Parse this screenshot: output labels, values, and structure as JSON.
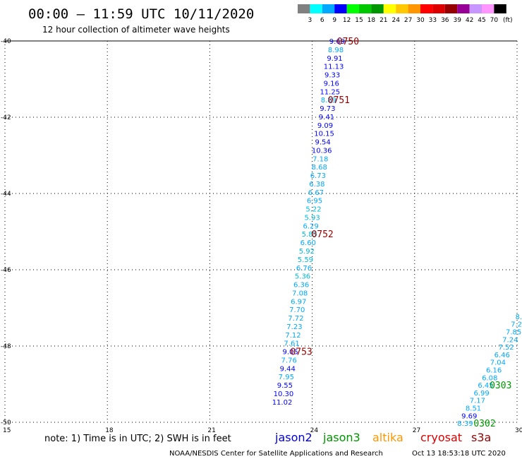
{
  "header": {
    "title": "00:00 – 11:59 UTC 10/11/2020",
    "subtitle": "12 hour collection of altimeter wave heights"
  },
  "legend": {
    "unit": "(ft)",
    "bins": [
      {
        "label": "3",
        "color": "#808080"
      },
      {
        "label": "6",
        "color": "#00ffff"
      },
      {
        "label": "9",
        "color": "#00a8ff"
      },
      {
        "label": "12",
        "color": "#0000ff"
      },
      {
        "label": "15",
        "color": "#00ff00"
      },
      {
        "label": "18",
        "color": "#00c800"
      },
      {
        "label": "21",
        "color": "#009600"
      },
      {
        "label": "24",
        "color": "#ffff00"
      },
      {
        "label": "27",
        "color": "#ffc800"
      },
      {
        "label": "30",
        "color": "#ff9600"
      },
      {
        "label": "33",
        "color": "#ff0000"
      },
      {
        "label": "36",
        "color": "#dc0000"
      },
      {
        "label": "39",
        "color": "#960000"
      },
      {
        "label": "42",
        "color": "#960096"
      },
      {
        "label": "45",
        "color": "#c896ff"
      },
      {
        "label": "70",
        "color": "#ff96ff"
      },
      {
        "label": "",
        "color": "#000000"
      }
    ]
  },
  "footer": {
    "note": "note: 1) Time is in UTC; 2) SWH is in feet",
    "satellites": [
      {
        "name": "jason2",
        "color": "#0000dd"
      },
      {
        "name": "jason3",
        "color": "#009600"
      },
      {
        "name": "altika",
        "color": "#ff9600"
      },
      {
        "name": "cryosat",
        "color": "#dd0000"
      },
      {
        "name": "s3a",
        "color": "#960000"
      }
    ],
    "credit": "NOAA/NESDIS Center for Satellite Applications and Research",
    "timestamp": "Oct 13 18:53:18 UTC 2020"
  },
  "chart_data": {
    "type": "scatter",
    "xlim": [
      15,
      30
    ],
    "ylim": [
      -50,
      -40
    ],
    "x_ticks": [
      "15",
      "18",
      "21",
      "24",
      "27",
      "30"
    ],
    "y_ticks": [
      "-40",
      "-42",
      "-44",
      "-46",
      "-48",
      "-50"
    ],
    "grid": true,
    "series": [
      {
        "color_by_value": true,
        "points": [
          {
            "x": 24.73,
            "y": -40.0,
            "label": "9.69"
          },
          {
            "x": 24.69,
            "y": -40.22,
            "label": "8.98"
          },
          {
            "x": 24.66,
            "y": -40.44,
            "label": "9.91"
          },
          {
            "x": 24.63,
            "y": -40.66,
            "label": "11.13"
          },
          {
            "x": 24.59,
            "y": -40.88,
            "label": "9.33"
          },
          {
            "x": 24.56,
            "y": -41.1,
            "label": "9.16"
          },
          {
            "x": 24.52,
            "y": -41.32,
            "label": "11.25"
          },
          {
            "x": 24.48,
            "y": -41.54,
            "label": "8.89"
          },
          {
            "x": 24.45,
            "y": -41.76,
            "label": "9.73"
          },
          {
            "x": 24.42,
            "y": -41.98,
            "label": "9.41"
          },
          {
            "x": 24.38,
            "y": -42.2,
            "label": "9.09"
          },
          {
            "x": 24.35,
            "y": -42.42,
            "label": "10.15"
          },
          {
            "x": 24.31,
            "y": -42.64,
            "label": "9.54"
          },
          {
            "x": 24.28,
            "y": -42.86,
            "label": "10.36"
          },
          {
            "x": 24.24,
            "y": -43.08,
            "label": "7.18"
          },
          {
            "x": 24.21,
            "y": -43.3,
            "label": "8.68"
          },
          {
            "x": 24.17,
            "y": -43.52,
            "label": "6.73"
          },
          {
            "x": 24.14,
            "y": -43.74,
            "label": "6.38"
          },
          {
            "x": 24.11,
            "y": -43.96,
            "label": "6.67"
          },
          {
            "x": 24.07,
            "y": -44.18,
            "label": "6.95"
          },
          {
            "x": 24.04,
            "y": -44.4,
            "label": "5.22"
          },
          {
            "x": 24.0,
            "y": -44.62,
            "label": "5.93"
          },
          {
            "x": 23.96,
            "y": -44.84,
            "label": "6.29"
          },
          {
            "x": 23.92,
            "y": -45.06,
            "label": "5.85"
          },
          {
            "x": 23.88,
            "y": -45.28,
            "label": "6.60"
          },
          {
            "x": 23.84,
            "y": -45.5,
            "label": "5.92"
          },
          {
            "x": 23.8,
            "y": -45.72,
            "label": "5.59"
          },
          {
            "x": 23.76,
            "y": -45.94,
            "label": "6.76"
          },
          {
            "x": 23.72,
            "y": -46.16,
            "label": "5.36"
          },
          {
            "x": 23.68,
            "y": -46.38,
            "label": "6.36"
          },
          {
            "x": 23.64,
            "y": -46.6,
            "label": "7.08"
          },
          {
            "x": 23.6,
            "y": -46.82,
            "label": "6.97"
          },
          {
            "x": 23.56,
            "y": -47.04,
            "label": "7.70"
          },
          {
            "x": 23.52,
            "y": -47.26,
            "label": "7.72"
          },
          {
            "x": 23.48,
            "y": -47.48,
            "label": "7.23"
          },
          {
            "x": 23.44,
            "y": -47.7,
            "label": "7.12"
          },
          {
            "x": 23.4,
            "y": -47.92,
            "label": "7.61"
          },
          {
            "x": 23.36,
            "y": -48.14,
            "label": "9.05"
          },
          {
            "x": 23.32,
            "y": -48.36,
            "label": "7.76"
          },
          {
            "x": 23.28,
            "y": -48.58,
            "label": "9.44"
          },
          {
            "x": 23.24,
            "y": -48.8,
            "label": "7.95"
          },
          {
            "x": 23.2,
            "y": -49.02,
            "label": "9.55"
          },
          {
            "x": 23.16,
            "y": -49.24,
            "label": "10.30"
          },
          {
            "x": 23.12,
            "y": -49.46,
            "label": "11.02"
          }
        ],
        "time_labels": [
          {
            "x": 25.05,
            "y": -40.0,
            "label": "0750",
            "color": "#960000"
          },
          {
            "x": 24.78,
            "y": -41.54,
            "label": "0751",
            "color": "#960000"
          },
          {
            "x": 24.3,
            "y": -45.06,
            "label": "0752",
            "color": "#960000"
          },
          {
            "x": 23.68,
            "y": -48.14,
            "label": "0753",
            "color": "#960000"
          }
        ]
      },
      {
        "color_by_value": true,
        "points": [
          {
            "x": 30.05,
            "y": -47.22,
            "label": "8."
          },
          {
            "x": 29.98,
            "y": -47.42,
            "label": "7.2"
          },
          {
            "x": 29.9,
            "y": -47.62,
            "label": "7.85"
          },
          {
            "x": 29.8,
            "y": -47.82,
            "label": "7.24"
          },
          {
            "x": 29.68,
            "y": -48.02,
            "label": "7.52"
          },
          {
            "x": 29.56,
            "y": -48.22,
            "label": "6.46"
          },
          {
            "x": 29.44,
            "y": -48.42,
            "label": "7.04"
          },
          {
            "x": 29.32,
            "y": -48.62,
            "label": "6.16"
          },
          {
            "x": 29.2,
            "y": -48.82,
            "label": "6.08"
          },
          {
            "x": 29.08,
            "y": -49.02,
            "label": "6.45"
          },
          {
            "x": 28.96,
            "y": -49.22,
            "label": "6.99"
          },
          {
            "x": 28.84,
            "y": -49.42,
            "label": "7.17"
          },
          {
            "x": 28.72,
            "y": -49.62,
            "label": "8.51"
          },
          {
            "x": 28.6,
            "y": -49.82,
            "label": "9.69"
          },
          {
            "x": 28.48,
            "y": -50.02,
            "label": "8.39"
          }
        ],
        "time_labels": [
          {
            "x": 29.52,
            "y": -49.02,
            "label": "0303",
            "color": "#009600"
          },
          {
            "x": 29.05,
            "y": -50.02,
            "label": "0302",
            "color": "#009600"
          }
        ]
      }
    ]
  }
}
